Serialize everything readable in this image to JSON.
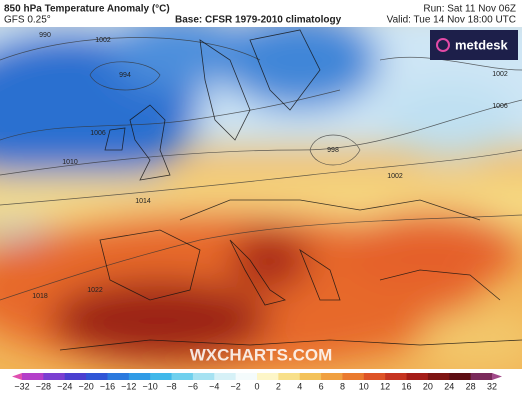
{
  "header": {
    "title": "850 hPa Temperature Anomaly (°C)",
    "model": "GFS 0.25°",
    "base": "Base: CFSR 1979-2010 climatology",
    "run": "Run: Sat 11 Nov 06Z",
    "valid": "Valid: Tue 14 Nov 18:00 UTC"
  },
  "logo": "metdesk",
  "watermark": "WXCHARTS.COM",
  "isobars": [
    "990",
    "1002",
    "994",
    "1006",
    "1010",
    "1014",
    "998",
    "1002",
    "1002",
    "1006",
    "1018",
    "1022"
  ],
  "legend": {
    "ticks": [
      "−32",
      "−28",
      "−24",
      "−20",
      "−16",
      "−12",
      "−10",
      "−8",
      "−6",
      "−4",
      "−2",
      "0",
      "2",
      "4",
      "6",
      "8",
      "10",
      "12",
      "16",
      "20",
      "24",
      "28",
      "32"
    ],
    "colors": [
      "#e04fb0",
      "#b43fc9",
      "#7a3fd1",
      "#4a3fd0",
      "#2f55d6",
      "#2a79de",
      "#2f9be6",
      "#3fb8ea",
      "#6fd0ee",
      "#a6e2f2",
      "#d6f1f7",
      "#f4fbfc",
      "#fdf6c8",
      "#f8e08a",
      "#f3c25a",
      "#f0a040",
      "#ea7a2e",
      "#de5326",
      "#c63420",
      "#a51d18",
      "#7e1412",
      "#5e0e14",
      "#7a2a5c",
      "#a14a8a"
    ]
  }
}
